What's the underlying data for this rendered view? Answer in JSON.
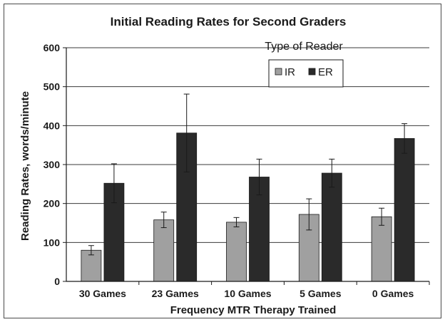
{
  "chart_data": {
    "type": "bar",
    "title": "Initial Reading Rates for Second Graders",
    "xlabel": "Frequency MTR Therapy Trained",
    "ylabel": "Reading Rates, words/minute",
    "categories": [
      "30 Games",
      "23 Games",
      "10 Games",
      "5 Games",
      "0 Games"
    ],
    "ylim": [
      0,
      600
    ],
    "yticks": [
      0,
      100,
      200,
      300,
      400,
      500,
      600
    ],
    "grid": true,
    "legend": {
      "title": "Type of Reader",
      "placement": "top-right"
    },
    "series": [
      {
        "name": "IR",
        "color": "#a0a0a0",
        "values": [
          80,
          158,
          152,
          172,
          166
        ],
        "error": [
          12,
          20,
          12,
          40,
          22
        ]
      },
      {
        "name": "ER",
        "color": "#2a2a2a",
        "values": [
          252,
          381,
          268,
          278,
          367
        ],
        "error": [
          50,
          100,
          46,
          36,
          38
        ]
      }
    ]
  }
}
